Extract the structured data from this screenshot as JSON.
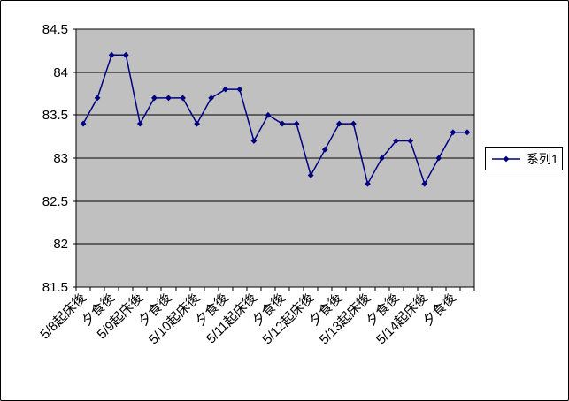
{
  "colors": {
    "series_line": "#000080",
    "plot_bg": "#C0C0C0",
    "axis": "#000000",
    "page_bg": "#FFFFFF"
  },
  "chart_data": {
    "type": "line",
    "title": "",
    "xlabel": "",
    "ylabel": "",
    "ylim": [
      81.5,
      84.5
    ],
    "y_ticks": [
      84.5,
      84,
      83.5,
      83,
      82.5,
      82,
      81.5
    ],
    "grid": "horizontal",
    "legend_position": "right",
    "marker": "diamond",
    "x_label_every_n_categories": 2,
    "x_tick_labels": [
      "5/8起床後",
      "夕食後",
      "5/9起床後",
      "夕食後",
      "5/10起床後",
      "夕食後",
      "5/11起床後",
      "夕食後",
      "5/12起床後",
      "夕食後",
      "5/13起床後",
      "夕食後",
      "5/14起床後",
      "夕食後"
    ],
    "series": [
      {
        "name": "系列1",
        "values": [
          83.4,
          83.7,
          84.2,
          84.2,
          83.4,
          83.7,
          83.7,
          83.7,
          83.4,
          83.7,
          83.8,
          83.8,
          83.2,
          83.5,
          83.4,
          83.4,
          82.8,
          83.1,
          83.4,
          83.4,
          82.7,
          83.0,
          83.2,
          83.2,
          82.7,
          83.0,
          83.3,
          83.3
        ]
      }
    ]
  }
}
